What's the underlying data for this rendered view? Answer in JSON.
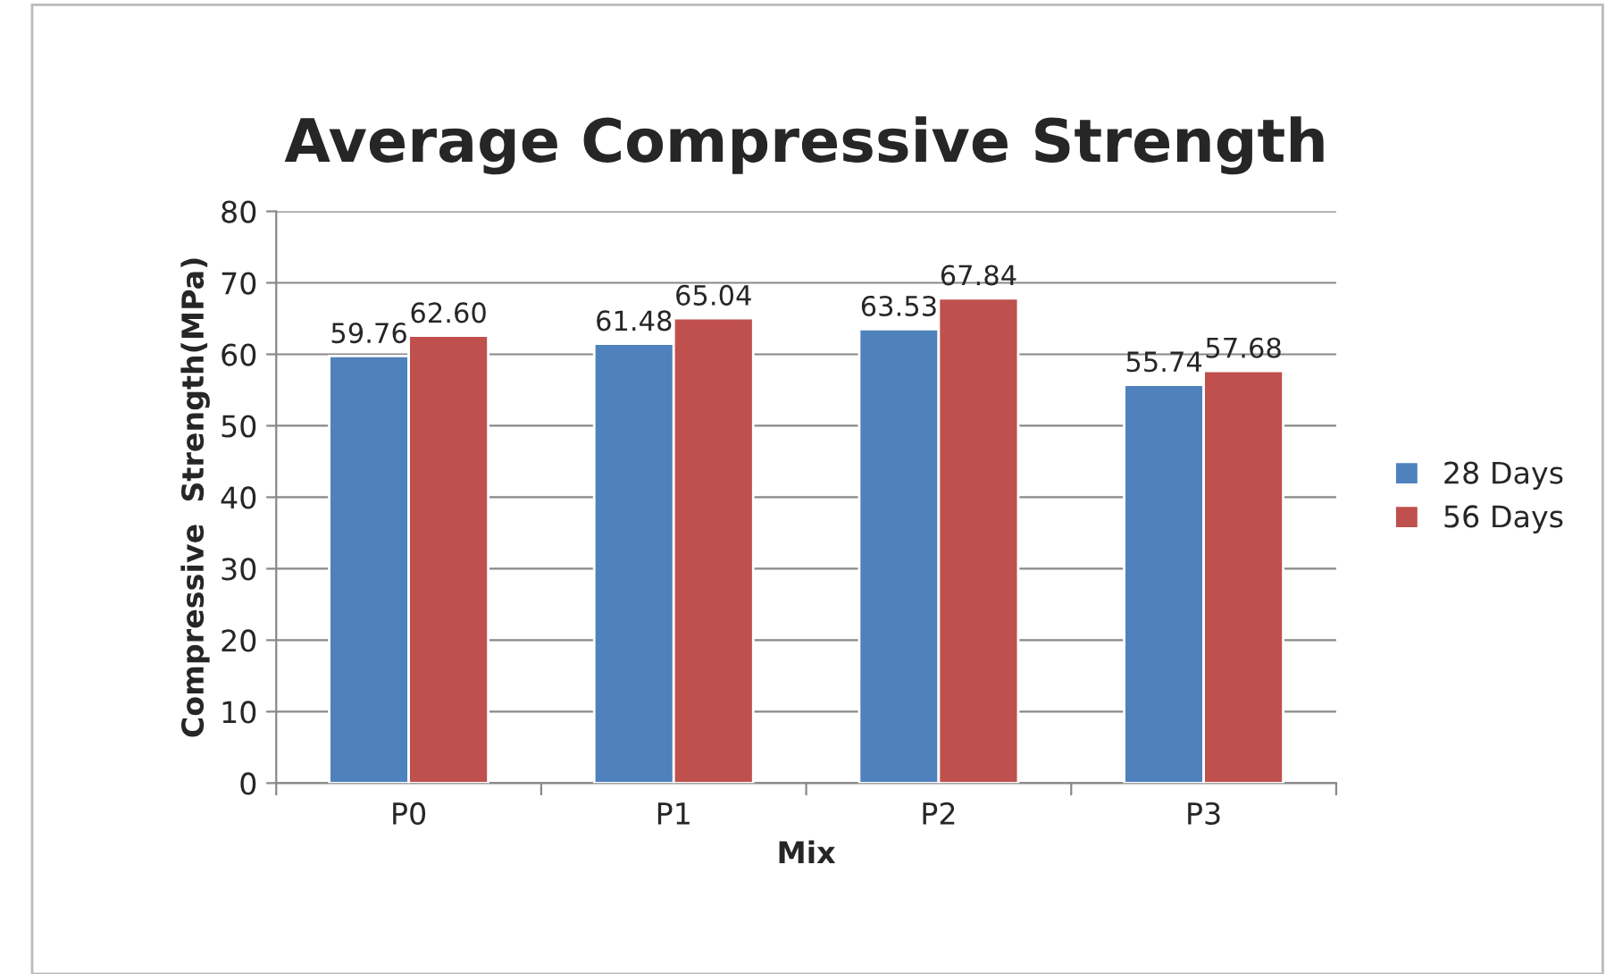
{
  "chart_data": {
    "type": "bar",
    "title": "Average Compressive Strength",
    "xlabel": "Mix",
    "ylabel": "Compressive  Strength(MPa)",
    "categories": [
      "P0",
      "P1",
      "P2",
      "P3"
    ],
    "series": [
      {
        "name": "28 Days",
        "color": "#4f81bd",
        "values": [
          59.76,
          61.48,
          63.53,
          55.74
        ],
        "value_labels": [
          "59.76",
          "61.48",
          "63.53",
          "55.74"
        ]
      },
      {
        "name": "56 Days",
        "color": "#c0504d",
        "values": [
          62.6,
          65.04,
          67.84,
          57.68
        ],
        "value_labels": [
          "62.60",
          "65.04",
          "67.84",
          "57.68"
        ]
      }
    ],
    "ylim": [
      0,
      80
    ],
    "yticks": [
      0,
      10,
      20,
      30,
      40,
      50,
      60,
      70,
      80
    ],
    "grid": "y",
    "legend": "right"
  }
}
